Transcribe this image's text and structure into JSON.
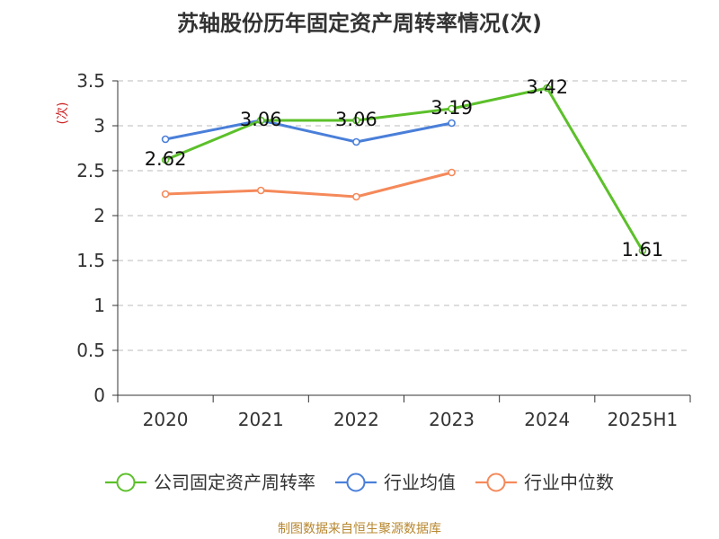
{
  "title": "苏轴股份历年固定资产周转率情况(次)",
  "source": "制图数据来自恒生聚源数据库",
  "colors": {
    "source": "#b7872f",
    "ylabel": "#cc2222",
    "axis": "#333333",
    "grid": "#bbbbbb"
  },
  "chart_data": {
    "type": "line",
    "categories": [
      "2020",
      "2021",
      "2022",
      "2023",
      "2024",
      "2025H1"
    ],
    "ylabel": "(次)",
    "ylim": [
      0,
      3.5
    ],
    "yticks": [
      "0",
      "0.5",
      "1",
      "1.5",
      "2",
      "2.5",
      "3",
      "3.5"
    ],
    "grid": true,
    "legend_position": "bottom",
    "series": [
      {
        "name": "公司固定资产周转率",
        "color": "#5cc02a",
        "values": [
          2.62,
          3.06,
          3.06,
          3.19,
          3.42,
          1.61
        ],
        "labels": [
          "2.62",
          "3.06",
          "3.06",
          "3.19",
          "3.42",
          "1.61"
        ]
      },
      {
        "name": "行业均值",
        "color": "#4a7fd9",
        "values": [
          2.85,
          3.06,
          2.82,
          3.03,
          null,
          null
        ]
      },
      {
        "name": "行业中位数",
        "color": "#f5895a",
        "values": [
          2.24,
          2.28,
          2.21,
          2.48,
          null,
          null
        ]
      }
    ]
  }
}
